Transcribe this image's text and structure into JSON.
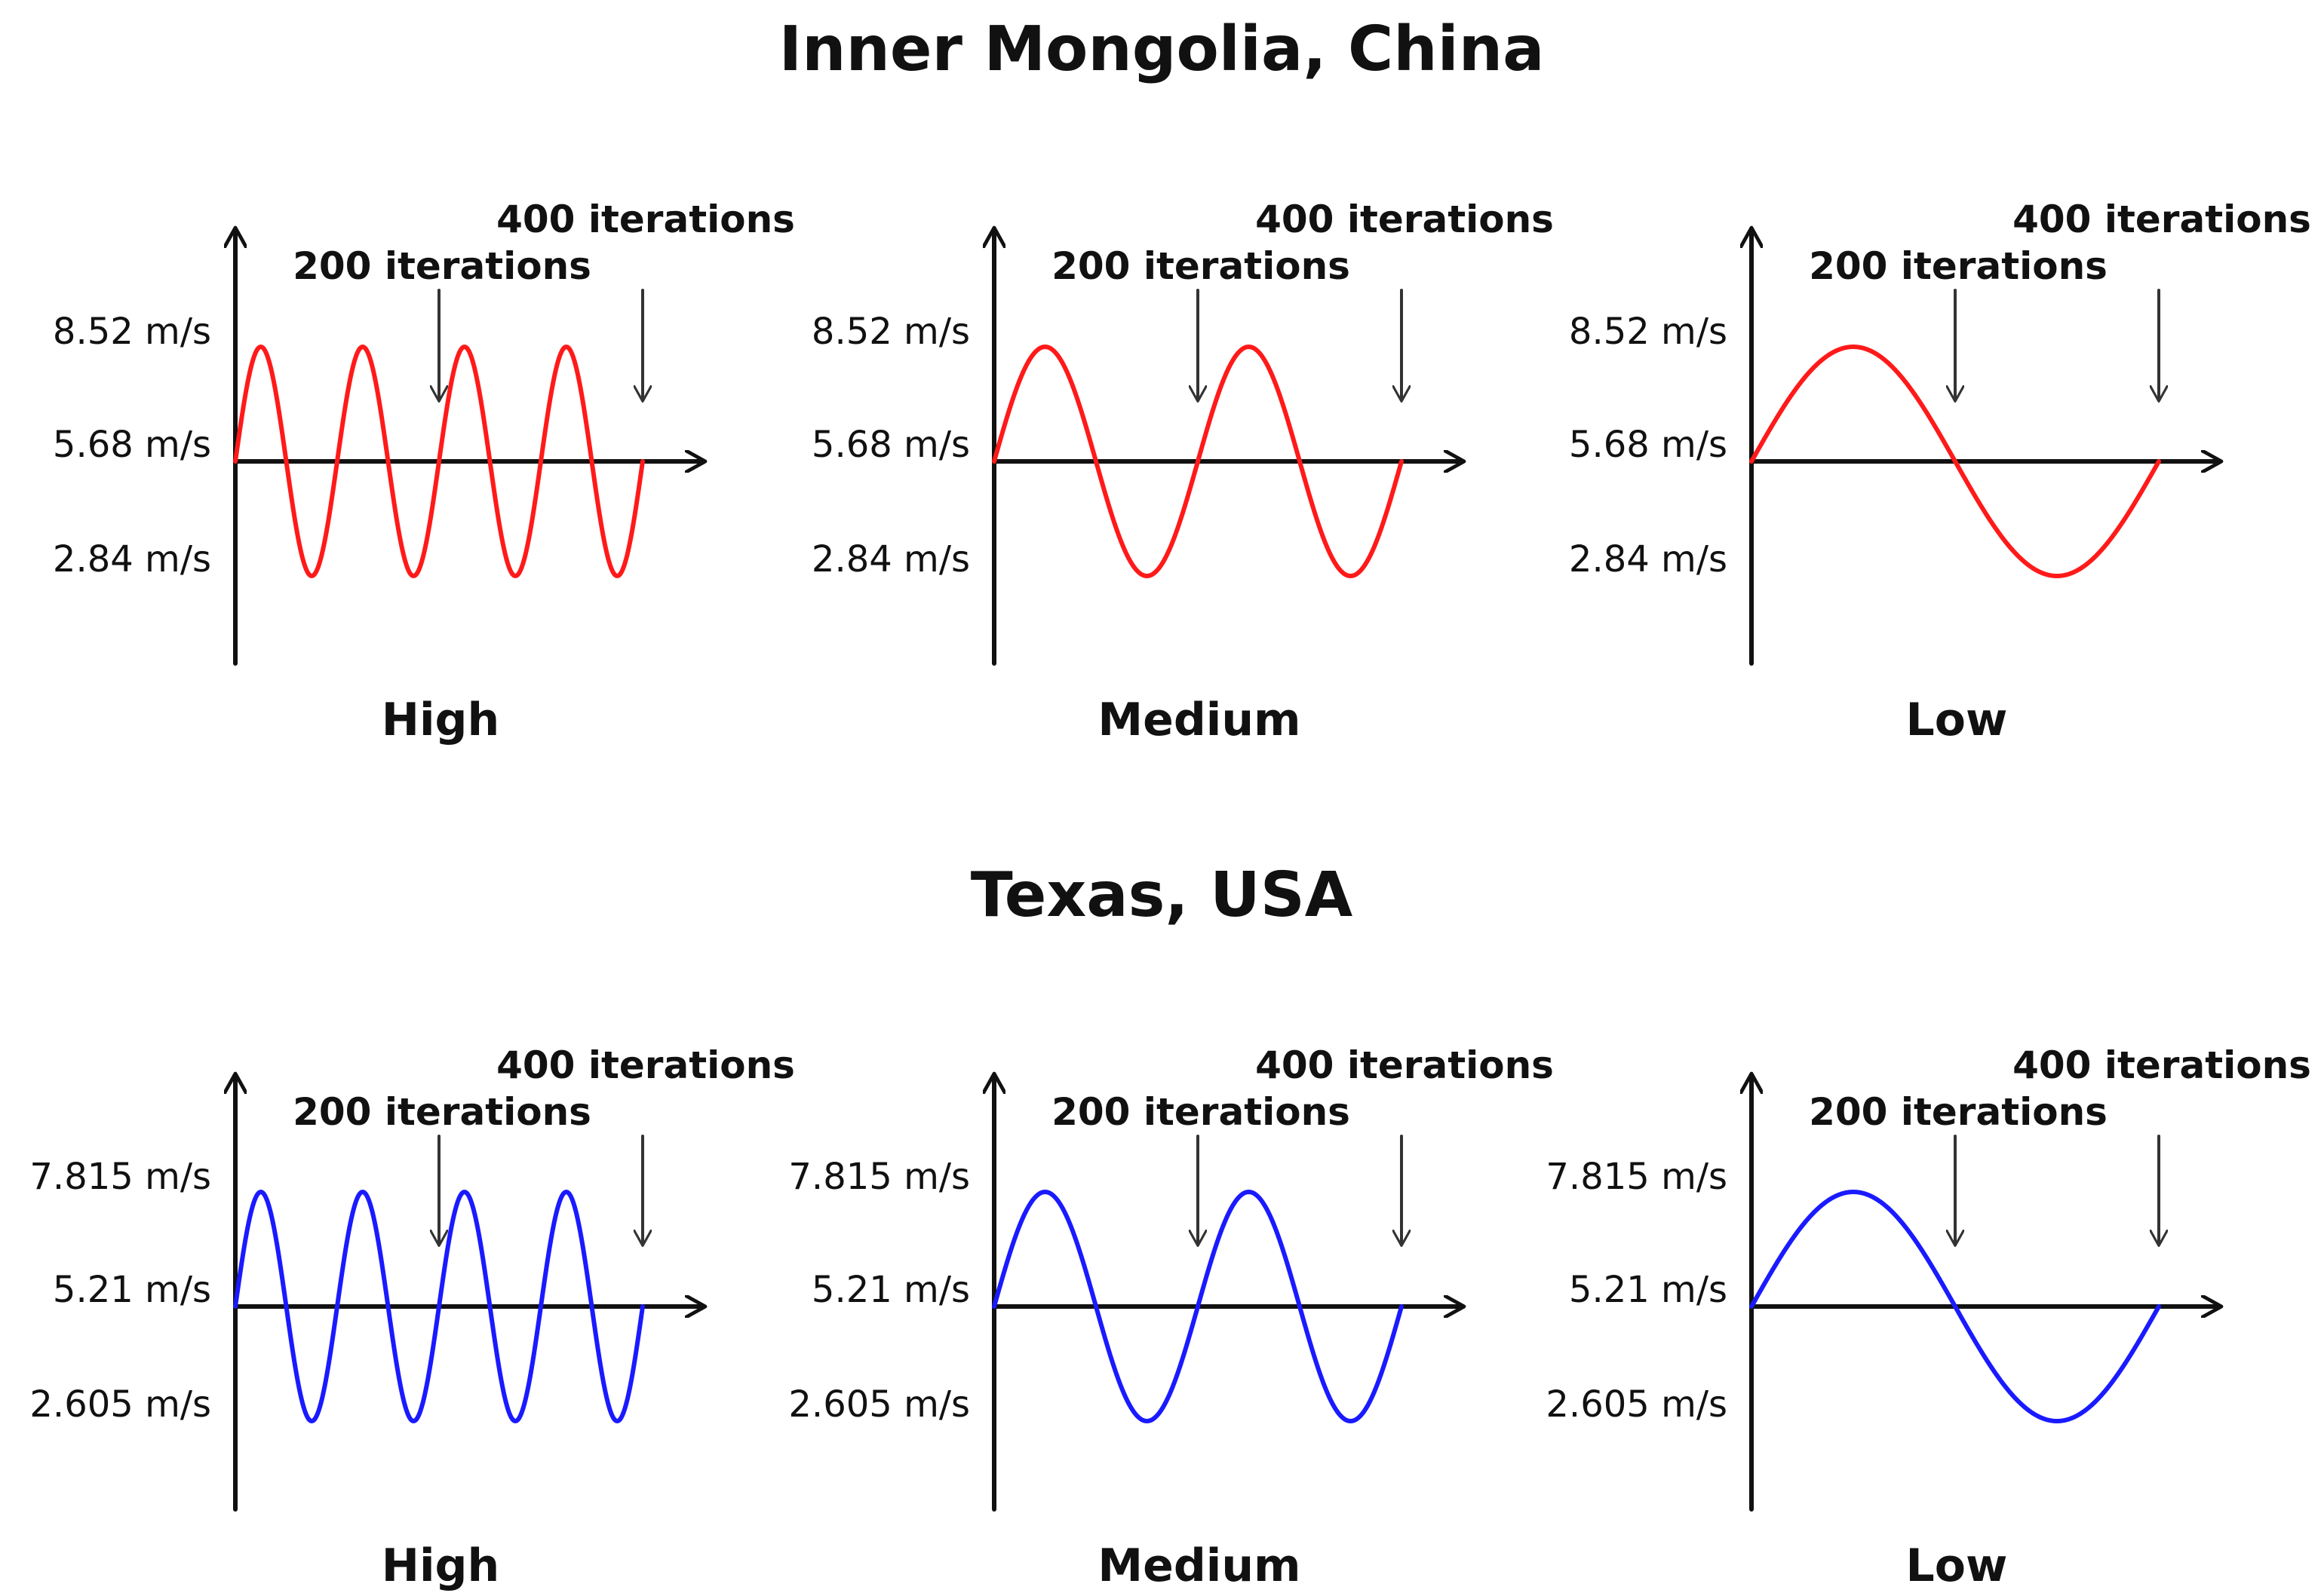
{
  "colors": {
    "inner_mongolia_wave": "#ff1a1a",
    "texas_wave": "#1a1aff",
    "axes": "#111111"
  },
  "chart_data": [
    {
      "title": "Inner Mongolia, China",
      "panels": [
        {
          "type": "line",
          "label": "High",
          "color": "#ff1a1a",
          "y_ticks": [
            "8.52 m/s",
            "5.68 m/s",
            "2.84 m/s"
          ],
          "y_values": {
            "max": 8.52,
            "mean": 5.68,
            "min": 2.84
          },
          "cycles": 4,
          "x_range": [
            0,
            400
          ],
          "annotations": [
            {
              "text": "200 iterations",
              "x": 200
            },
            {
              "text": "400 iterations",
              "x": 400
            }
          ]
        },
        {
          "type": "line",
          "label": "Medium",
          "color": "#ff1a1a",
          "y_ticks": [
            "8.52 m/s",
            "5.68 m/s",
            "2.84 m/s"
          ],
          "y_values": {
            "max": 8.52,
            "mean": 5.68,
            "min": 2.84
          },
          "cycles": 2,
          "x_range": [
            0,
            400
          ],
          "annotations": [
            {
              "text": "200 iterations",
              "x": 200
            },
            {
              "text": "400 iterations",
              "x": 400
            }
          ]
        },
        {
          "type": "line",
          "label": "Low",
          "color": "#ff1a1a",
          "y_ticks": [
            "8.52 m/s",
            "5.68 m/s",
            "2.84 m/s"
          ],
          "y_values": {
            "max": 8.52,
            "mean": 5.68,
            "min": 2.84
          },
          "cycles": 1,
          "x_range": [
            0,
            400
          ],
          "annotations": [
            {
              "text": "200 iterations",
              "x": 200
            },
            {
              "text": "400 iterations",
              "x": 400
            }
          ]
        }
      ]
    },
    {
      "title": "Texas, USA",
      "panels": [
        {
          "type": "line",
          "label": "High",
          "color": "#1a1aff",
          "y_ticks": [
            "7.815 m/s",
            "5.21 m/s",
            "2.605 m/s"
          ],
          "y_values": {
            "max": 7.815,
            "mean": 5.21,
            "min": 2.605
          },
          "cycles": 4,
          "x_range": [
            0,
            400
          ],
          "annotations": [
            {
              "text": "200 iterations",
              "x": 200
            },
            {
              "text": "400 iterations",
              "x": 400
            }
          ]
        },
        {
          "type": "line",
          "label": "Medium",
          "color": "#1a1aff",
          "y_ticks": [
            "7.815 m/s",
            "5.21 m/s",
            "2.605 m/s"
          ],
          "y_values": {
            "max": 7.815,
            "mean": 5.21,
            "min": 2.605
          },
          "cycles": 2,
          "x_range": [
            0,
            400
          ],
          "annotations": [
            {
              "text": "200 iterations",
              "x": 200
            },
            {
              "text": "400 iterations",
              "x": 400
            }
          ]
        },
        {
          "type": "line",
          "label": "Low",
          "color": "#1a1aff",
          "y_ticks": [
            "7.815 m/s",
            "5.21 m/s",
            "2.605 m/s"
          ],
          "y_values": {
            "max": 7.815,
            "mean": 5.21,
            "min": 2.605
          },
          "cycles": 1,
          "x_range": [
            0,
            400
          ],
          "annotations": [
            {
              "text": "200 iterations",
              "x": 200
            },
            {
              "text": "400 iterations",
              "x": 400
            }
          ]
        }
      ]
    }
  ]
}
